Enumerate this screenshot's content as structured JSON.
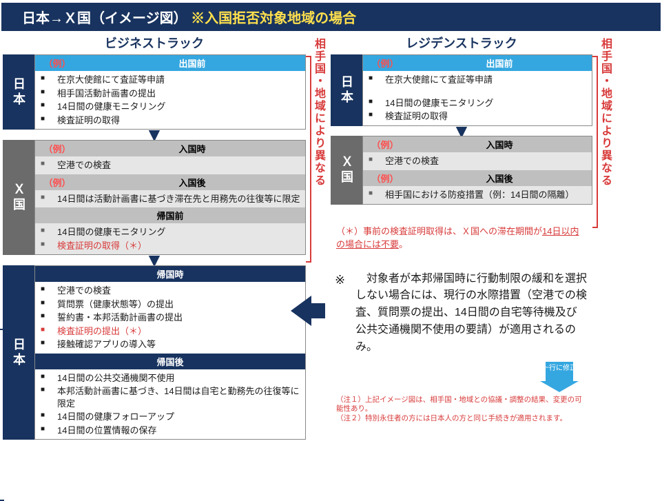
{
  "colors": {
    "navy": "#18335f",
    "sky": "#35a7e0",
    "gray_head": "#bfbfbf",
    "gray_body": "#e6e6e6",
    "gray_label": "#6b6b6b",
    "red": "#d83a3a",
    "yellow": "#ffe04d",
    "text": "#1a1a1a"
  },
  "header": {
    "prefix": "日本→Ｘ国（イメージ図）",
    "suffix": "※入国拒否対象地域の場合"
  },
  "business": {
    "title": "ビジネストラック",
    "jp_label": "日本",
    "jp_head_ex": "（例）",
    "jp_head_title": "出国前",
    "jp_items": [
      "在京大使館にて査証等申請",
      "相手国活動計画書の提出",
      "14日間の健康モニタリング",
      "検査証明の取得"
    ],
    "x_label": "Ｘ国",
    "x_head1_ex": "（例）",
    "x_head1_title": "入国時",
    "x_items1": [
      "空港での検査"
    ],
    "x_head2_ex": "（例）",
    "x_head2_title": "入国後",
    "x_items2": [
      "14日間は活動計画書に基づき滞在先と用務先の往復等に限定"
    ],
    "x_head3_title": "帰国前",
    "x_items3": [
      "14日間の健康モニタリング",
      "検査証明の取得（＊）"
    ],
    "x_items3_red_index": 1,
    "jp2_label": "日本",
    "jp2_head1_title": "帰国時",
    "jp2_items1": [
      "空港での検査",
      "質問票（健康状態等）の提出",
      "誓約書・本邦活動計画書の提出",
      "検査証明の提出（＊）",
      "接触確認アプリの導入等"
    ],
    "jp2_items1_red_index": 3,
    "jp2_head2_title": "帰国後",
    "jp2_items2": [
      "14日間の公共交通機関不使用",
      "本邦活動計画書に基づき、14日間は自宅と勤務先の往復等に限定",
      "14日間の健康フォローアップ",
      "14日間の位置情報の保存"
    ]
  },
  "residence": {
    "title": "レジデンストラック",
    "jp_label": "日本",
    "jp_head_ex": "（例）",
    "jp_head_title": "出国前",
    "jp_items": [
      "在京大使館にて査証等申請",
      "14日間の健康モニタリング",
      "検査証明の取得"
    ],
    "jp_item_gap_after": 0,
    "x_label": "Ｘ国",
    "x_head1_ex": "（例）",
    "x_head1_title": "入国時",
    "x_items1": [
      "空港での検査"
    ],
    "x_head2_ex": "（例）",
    "x_head2_title": "入国後",
    "x_items2": [
      "相手国における防疫措置（例：14日間の隔離）"
    ]
  },
  "vnote_text": "相手国・地域により異なる",
  "note_star": "（＊）事前の検査証明取得は、Ｘ国への滞在期間が14日以内の場合には不要。",
  "note_big": "※　対象者が本邦帰国時に行動制限の緩和を選択しない場合には、現行の水際措置（空港での検査、質問票の提出、14日間の自宅等待機及び公共交通機関不使用の要請）が適用されるのみ。",
  "small_arrow_text": "一行に修正",
  "footnotes": [
    "（注１）上記イメージ図は、相手国・地域との協議・調整の結果、変更の可能性あり。",
    "（注２）特別永住者の方には日本人の方と同じ手続きが適用されます。"
  ]
}
